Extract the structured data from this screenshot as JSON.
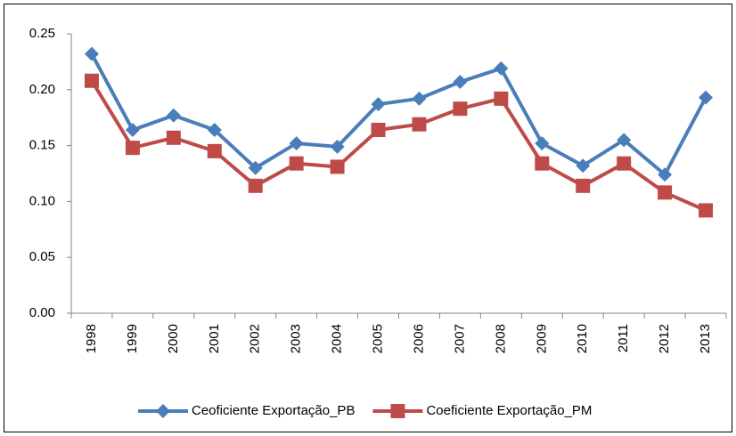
{
  "chart_data": {
    "type": "line",
    "categories": [
      "1998",
      "1999",
      "2000",
      "2001",
      "2002",
      "2003",
      "2004",
      "2005",
      "2006",
      "2007",
      "2008",
      "2009",
      "2010",
      "2011",
      "2012",
      "2013"
    ],
    "series": [
      {
        "name": "Ceoficiente Exportação_PB",
        "color": "#4a7ebb",
        "marker": "diamond",
        "values": [
          0.232,
          0.164,
          0.177,
          0.164,
          0.13,
          0.152,
          0.149,
          0.187,
          0.192,
          0.207,
          0.219,
          0.152,
          0.132,
          0.155,
          0.124,
          0.193
        ]
      },
      {
        "name": "Coeficiente Exportação_PM",
        "color": "#be4b48",
        "marker": "square",
        "values": [
          0.208,
          0.148,
          0.157,
          0.145,
          0.114,
          0.134,
          0.131,
          0.164,
          0.169,
          0.183,
          0.192,
          0.134,
          0.114,
          0.134,
          0.108,
          0.092
        ]
      }
    ],
    "ylim": [
      0,
      0.25
    ],
    "yticks": [
      {
        "value": 0,
        "label": "0.00"
      },
      0.05,
      {
        "value": 0.1,
        "label": "0.10"
      },
      0.15,
      {
        "value": 0.2,
        "label": "0.20"
      },
      0.25
    ],
    "grid": false,
    "legend": "bottom"
  }
}
